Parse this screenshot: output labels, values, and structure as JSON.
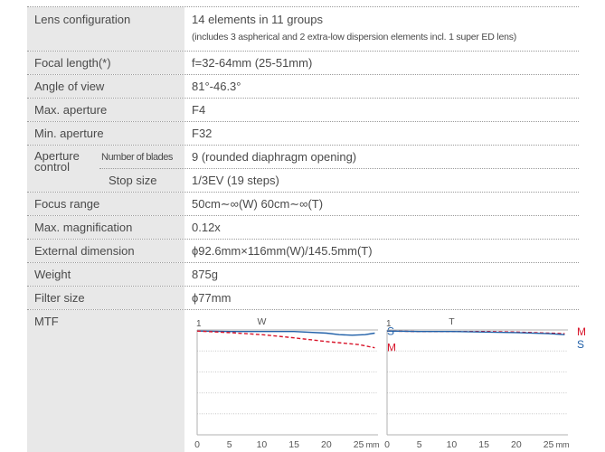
{
  "specs": {
    "lens_configuration": {
      "label": "Lens configuration",
      "value": "14 elements in 11 groups",
      "note": "(includes 3 aspherical and 2 extra-low dispersion elements incl. 1 super ED lens)"
    },
    "focal_length": {
      "label": "Focal length(*)",
      "value": "f=32-64mm (25-51mm)"
    },
    "angle_of_view": {
      "label": "Angle of view",
      "value": "81°-46.3°"
    },
    "max_aperture": {
      "label": "Max. aperture",
      "value": "F4"
    },
    "min_aperture": {
      "label": "Min. aperture",
      "value": "F32"
    },
    "aperture_control": {
      "label_line1": "Aperture",
      "label_line2": "control",
      "blades_label": "Number of blades",
      "blades_value": "9 (rounded diaphragm opening)",
      "stop_label": "Stop size",
      "stop_value": "1/3EV (19 steps)"
    },
    "focus_range": {
      "label": "Focus range",
      "value": "50cm∼∞(W)  60cm∼∞(T)"
    },
    "max_magnification": {
      "label": "Max. magnification",
      "value": "0.12x"
    },
    "external_dimension": {
      "label": "External dimension",
      "value": "ϕ92.6mm×116mm(W)/145.5mm(T)"
    },
    "weight": {
      "label": "Weight",
      "value": "875g"
    },
    "filter_size": {
      "label": "Filter size",
      "value": "ϕ77mm"
    },
    "mtf": {
      "label": "MTF"
    }
  },
  "colors": {
    "label_bg": "#e8e8e8",
    "sagittal": "#1f5fa8",
    "meridional": "#d8142a"
  },
  "chart_data": [
    {
      "type": "line",
      "title": "W",
      "x_ticks": [
        "0",
        "5",
        "10",
        "15",
        "20",
        "25"
      ],
      "x_unit": "mm",
      "y_tick": "1",
      "xlim": [
        0,
        28
      ],
      "ylim": [
        0,
        1
      ],
      "grid": true,
      "series": [
        {
          "name": "S",
          "color": "#1f5fa8",
          "dash": false,
          "x": [
            0,
            5,
            10,
            15,
            20,
            22,
            24,
            26,
            27.5
          ],
          "y": [
            0.99,
            0.985,
            0.985,
            0.985,
            0.97,
            0.955,
            0.95,
            0.955,
            0.97
          ]
        },
        {
          "name": "M",
          "color": "#d8142a",
          "dash": true,
          "x": [
            0,
            5,
            10,
            15,
            20,
            25,
            27.5
          ],
          "y": [
            0.99,
            0.975,
            0.955,
            0.925,
            0.89,
            0.86,
            0.83
          ]
        }
      ]
    },
    {
      "type": "line",
      "title": "T",
      "x_ticks": [
        "0",
        "5",
        "10",
        "15",
        "20",
        "25"
      ],
      "x_unit": "mm",
      "y_tick": "1",
      "xlim": [
        0,
        28
      ],
      "ylim": [
        0,
        1
      ],
      "grid": true,
      "series": [
        {
          "name": "M",
          "color": "#d8142a",
          "dash": true,
          "x": [
            0,
            5,
            10,
            15,
            20,
            25,
            27.5
          ],
          "y": [
            0.99,
            0.985,
            0.985,
            0.985,
            0.98,
            0.97,
            0.965
          ]
        },
        {
          "name": "S",
          "color": "#1f5fa8",
          "dash": false,
          "x": [
            0,
            5,
            10,
            15,
            20,
            25,
            27.5
          ],
          "y": [
            0.99,
            0.985,
            0.985,
            0.98,
            0.975,
            0.965,
            0.955
          ]
        }
      ]
    }
  ]
}
